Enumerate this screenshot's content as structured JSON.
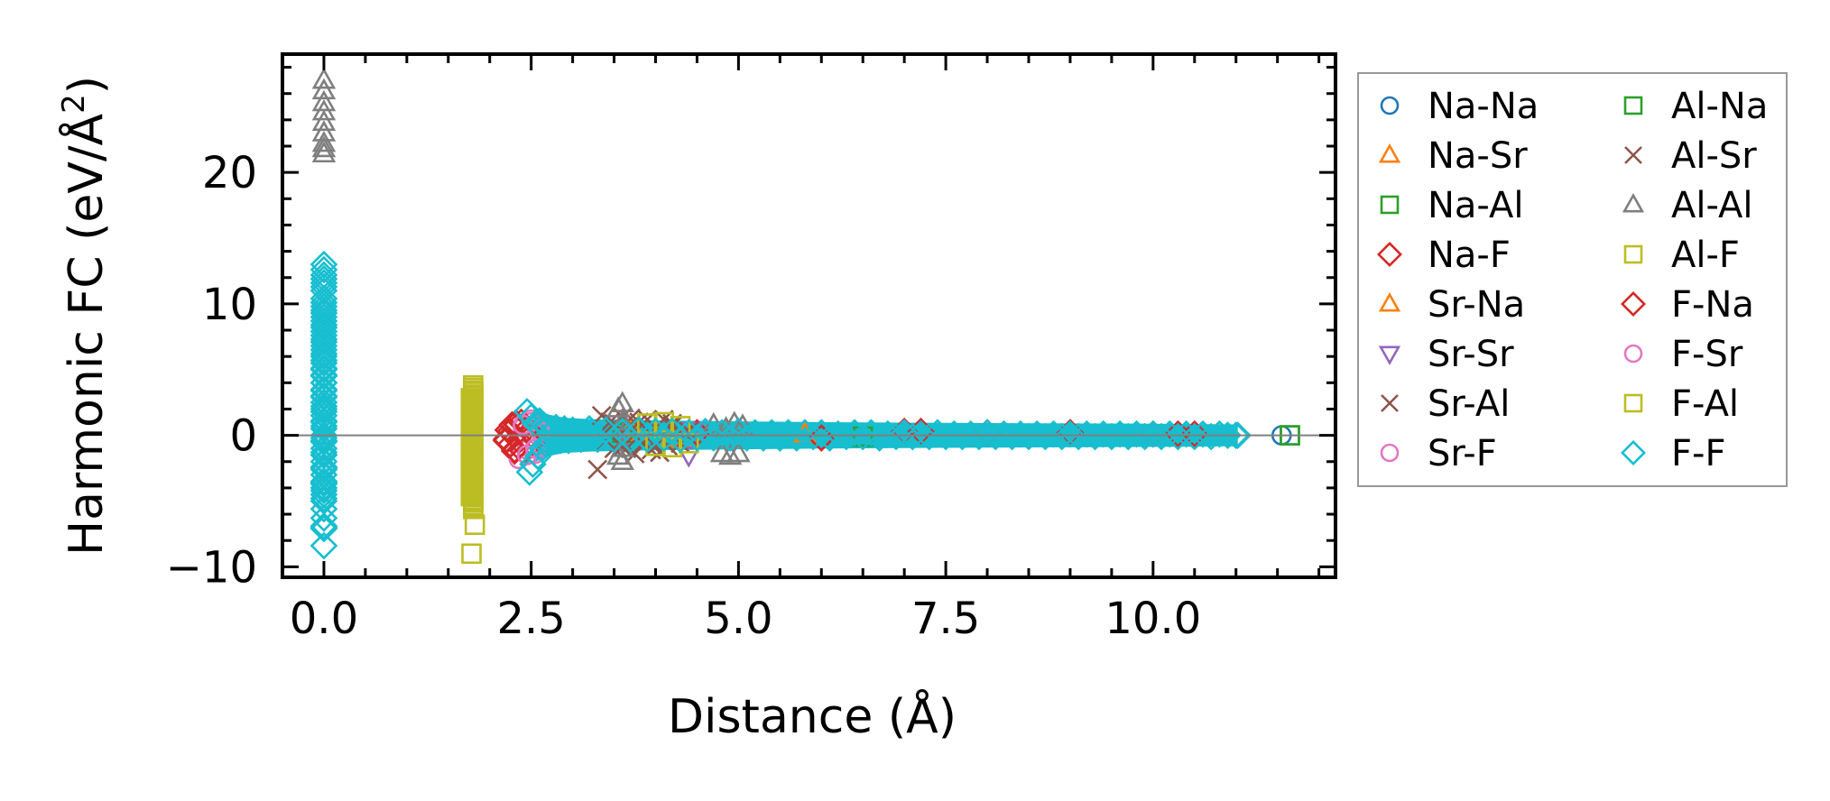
{
  "chart_data": {
    "type": "scatter",
    "title": "",
    "xlabel": "Distance (Å)",
    "ylabel": "Harmonic FC (eV/Å²)",
    "ylabel_parts": {
      "main": "Harmonic FC (eV/Å",
      "sup": "2",
      "close": ")"
    },
    "xlim": [
      -0.5,
      12.2
    ],
    "ylim": [
      -10.8,
      29.0
    ],
    "xticks": [
      0.0,
      2.5,
      5.0,
      7.5,
      10.0
    ],
    "xtick_labels": [
      "0.0",
      "2.5",
      "5.0",
      "7.5",
      "10.0"
    ],
    "yticks": [
      -10,
      0,
      10,
      20
    ],
    "ytick_labels": [
      "−10",
      "0",
      "10",
      "20"
    ],
    "x_minor_step": 0.5,
    "y_minor_step": 2,
    "zero_line": true,
    "grid": false,
    "legend_position": "outside-right",
    "legend_columns": 2,
    "series": [
      {
        "name": "Na-Na",
        "marker": "circle",
        "color": "#1f77b4",
        "x": [
          11.55
        ],
        "y": [
          0.0
        ]
      },
      {
        "name": "Na-Sr",
        "marker": "triangle-up",
        "color": "#ff7f0e",
        "x": [
          3.7,
          4.2,
          5.8
        ],
        "y": [
          0.3,
          -0.2,
          0.1
        ]
      },
      {
        "name": "Na-Al",
        "marker": "square",
        "color": "#2ca02c",
        "x": [
          3.6,
          6.5,
          11.65
        ],
        "y": [
          0.2,
          -0.1,
          0.0
        ]
      },
      {
        "name": "Na-F",
        "marker": "diamond",
        "color": "#d62728",
        "x": [
          2.2,
          2.25,
          2.3,
          4.5,
          7.2,
          9.0,
          10.3
        ],
        "y": [
          -0.4,
          0.3,
          -1.2,
          0.2,
          0.3,
          0.2,
          0.1
        ]
      },
      {
        "name": "Sr-Na",
        "marker": "triangle-up",
        "color": "#ff7f0e",
        "x": [
          3.75,
          4.3
        ],
        "y": [
          0.2,
          -0.3
        ]
      },
      {
        "name": "Sr-Sr",
        "marker": "triangle-down",
        "color": "#9467bd",
        "x": [
          4.4,
          4.45
        ],
        "y": [
          -1.5,
          0.4
        ]
      },
      {
        "name": "Sr-Al",
        "marker": "x",
        "color": "#8c564b",
        "x": [
          3.3,
          3.35,
          3.4,
          3.45,
          3.5,
          3.55,
          3.6,
          3.65,
          3.7,
          3.75,
          3.8,
          3.85,
          3.9,
          3.95,
          4.0,
          4.05,
          4.1,
          4.15,
          4.2,
          4.3,
          4.4
        ],
        "y": [
          -2.6,
          1.5,
          -0.5,
          1.0,
          -1.0,
          0.4,
          1.4,
          -1.0,
          0.8,
          -1.4,
          1.0,
          -0.6,
          1.2,
          -1.1,
          0.6,
          -1.3,
          1.2,
          -0.8,
          0.7,
          -0.6,
          0.3
        ]
      },
      {
        "name": "Sr-F",
        "marker": "circle",
        "color": "#e377c2",
        "x": [
          2.35,
          2.4,
          2.45,
          2.5,
          2.55,
          2.6
        ],
        "y": [
          -1.8,
          0.6,
          -1.1,
          1.0,
          -1.4,
          0.5
        ]
      },
      {
        "name": "Al-Na",
        "marker": "square",
        "color": "#2ca02c",
        "x": [
          11.65
        ],
        "y": [
          0.0
        ]
      },
      {
        "name": "Al-Sr",
        "marker": "x",
        "color": "#8c564b",
        "x": [
          3.5,
          3.6,
          3.7,
          4.0,
          4.2
        ],
        "y": [
          0.9,
          -0.9,
          1.3,
          -0.8,
          0.9
        ]
      },
      {
        "name": "Al-Al",
        "marker": "triangle-up",
        "color": "#7f7f7f",
        "x": [
          0.0,
          0.0,
          0.0,
          0.0,
          0.0,
          0.0,
          0.0,
          0.0,
          0.0,
          3.55,
          3.55,
          3.6,
          3.6,
          3.6,
          3.6,
          3.65,
          4.7,
          4.8,
          4.85,
          4.9,
          4.95,
          5.0,
          5.05
        ],
        "y": [
          27.0,
          26.2,
          25.3,
          24.6,
          23.8,
          23.0,
          22.2,
          21.8,
          21.4,
          2.0,
          -1.6,
          2.4,
          -2.0,
          1.0,
          -1.0,
          0.5,
          0.8,
          -1.4,
          0.5,
          -1.6,
          0.9,
          -1.4,
          0.7
        ]
      },
      {
        "name": "Al-F",
        "marker": "square",
        "color": "#bcbd22",
        "x": [
          1.78,
          1.8,
          1.8,
          1.8,
          1.8,
          1.8,
          1.8,
          1.8,
          1.8,
          1.8,
          1.8,
          1.8,
          1.8,
          1.8,
          1.8,
          1.8,
          1.8,
          1.8,
          1.8,
          1.8,
          1.8,
          1.8,
          1.8,
          1.8,
          1.8,
          1.8,
          1.82,
          3.9,
          4.0,
          4.1,
          4.2,
          4.3,
          4.4
        ],
        "y": [
          -9.0,
          3.8,
          3.3,
          2.8,
          2.3,
          1.8,
          1.3,
          0.8,
          0.3,
          -0.2,
          -0.7,
          -1.2,
          -1.7,
          -2.2,
          -2.7,
          -3.2,
          -3.7,
          -4.2,
          -4.7,
          -5.1,
          -5.5,
          3.0,
          1.0,
          -1.0,
          -3.0,
          -5.0,
          -6.8,
          0.9,
          -0.8,
          1.0,
          -0.9,
          0.7,
          -0.6
        ]
      },
      {
        "name": "F-Na",
        "marker": "diamond",
        "color": "#d62728",
        "x": [
          2.2,
          2.22,
          2.25,
          2.27,
          2.3,
          2.32,
          2.35,
          2.38,
          2.4,
          2.45,
          2.5,
          5.0,
          6.0,
          7.0,
          8.0,
          9.0,
          10.0,
          10.5
        ],
        "y": [
          -0.3,
          0.4,
          -0.7,
          0.8,
          -1.1,
          0.9,
          -0.4,
          1.0,
          -1.2,
          0.5,
          -0.6,
          0.3,
          -0.2,
          0.3,
          0.2,
          0.2,
          0.1,
          0.1
        ]
      },
      {
        "name": "F-Sr",
        "marker": "circle",
        "color": "#e377c2",
        "x": [
          2.4,
          2.45,
          2.5,
          2.55,
          2.6
        ],
        "y": [
          0.8,
          -1.5,
          1.2,
          -1.0,
          0.3
        ]
      },
      {
        "name": "F-Al",
        "marker": "square",
        "color": "#bcbd22",
        "x": [
          1.8,
          1.8,
          1.8,
          1.8,
          1.8,
          1.8,
          1.8,
          1.8,
          1.8,
          1.8,
          1.8,
          1.8,
          1.8,
          1.8,
          1.8,
          1.8,
          1.8,
          1.8,
          1.8,
          1.8,
          1.8,
          1.8,
          1.8,
          1.8,
          1.8
        ],
        "y": [
          3.6,
          3.1,
          2.6,
          2.1,
          1.6,
          1.1,
          0.6,
          0.1,
          -0.4,
          -0.9,
          -1.4,
          -1.9,
          -2.4,
          -2.9,
          -3.4,
          -3.9,
          -4.4,
          -4.9,
          -5.3,
          3.4,
          1.5,
          -0.5,
          -2.5,
          -4.5,
          -5.6
        ]
      },
      {
        "name": "F-F",
        "marker": "diamond",
        "color": "#17becf",
        "x": [
          0.0,
          0.0,
          0.0,
          0.0,
          0.0,
          0.0,
          0.0,
          0.0,
          0.0,
          0.0,
          0.0,
          0.0,
          0.0,
          0.0,
          0.0,
          0.0,
          0.0,
          0.0,
          0.0,
          0.0,
          0.0,
          0.0,
          0.0,
          0.0,
          0.0,
          0.0,
          0.0,
          0.0,
          0.0,
          0.0,
          0.0,
          0.0,
          0.0,
          0.0,
          0.0,
          0.0,
          0.0,
          0.0,
          0.0,
          0.0,
          0.0,
          0.0,
          0.0,
          0.0,
          0.0,
          0.0,
          0.0,
          0.0,
          0.0,
          0.0,
          0.0,
          0.0,
          0.0,
          0.0,
          0.0,
          0.0,
          0.0,
          0.0,
          0.0,
          0.0,
          0.0,
          0.0,
          0.0,
          0.0,
          0.0,
          0.0,
          0.0,
          0.0,
          0.0,
          0.0,
          0.0,
          0.0,
          2.45,
          2.48,
          2.5,
          2.52,
          2.55,
          2.58,
          2.6,
          2.63,
          2.65,
          2.68,
          2.7,
          2.75,
          2.8,
          2.85,
          2.9,
          2.95,
          3.0,
          3.1,
          3.2,
          3.3,
          3.4,
          3.5,
          3.6,
          3.7,
          3.8,
          3.9,
          4.0,
          4.1,
          4.2,
          4.3,
          4.4,
          4.5,
          4.6,
          4.7,
          4.8,
          4.9,
          5.0,
          5.1,
          5.2,
          5.3,
          5.4,
          5.5,
          5.6,
          5.7,
          5.8,
          5.9,
          6.0,
          6.1,
          6.2,
          6.3,
          6.4,
          6.5,
          6.6,
          6.7,
          6.8,
          6.9,
          7.0,
          7.1,
          7.2,
          7.3,
          7.4,
          7.5,
          7.6,
          7.7,
          7.8,
          7.9,
          8.0,
          8.1,
          8.2,
          8.3,
          8.4,
          8.5,
          8.6,
          8.7,
          8.8,
          8.9,
          9.0,
          9.1,
          9.2,
          9.3,
          9.4,
          9.5,
          9.6,
          9.7,
          9.8,
          9.9,
          10.0,
          10.1,
          10.2,
          10.3,
          10.4,
          10.5,
          10.6,
          10.7,
          10.8,
          10.9,
          11.0,
          11.02
        ],
        "y": [
          13.0,
          12.2,
          11.6,
          11.0,
          10.4,
          9.8,
          9.3,
          8.7,
          8.2,
          7.6,
          7.1,
          6.5,
          6.0,
          5.5,
          5.0,
          4.5,
          4.0,
          3.5,
          3.0,
          2.5,
          2.0,
          1.5,
          1.0,
          0.5,
          0.0,
          -0.5,
          -1.0,
          -1.5,
          -2.0,
          -2.5,
          -3.0,
          -3.5,
          -4.0,
          -4.5,
          -5.0,
          -5.6,
          -6.3,
          -7.1,
          -8.4,
          12.6,
          11.3,
          10.1,
          9.0,
          7.9,
          6.8,
          5.7,
          4.6,
          3.4,
          2.2,
          1.1,
          -0.2,
          -1.3,
          -2.4,
          -3.6,
          -4.2,
          -6.9,
          9.5,
          8.4,
          7.3,
          6.2,
          5.1,
          4.0,
          2.9,
          1.8,
          0.7,
          -0.4,
          -1.5,
          -2.6,
          -3.7,
          -4.8,
          11.9,
          -7.0,
          1.8,
          -2.8,
          1.4,
          -2.2,
          0.9,
          -1.6,
          1.1,
          -1.0,
          0.8,
          -0.7,
          0.6,
          -0.5,
          0.6,
          -0.4,
          0.5,
          -0.4,
          0.4,
          -0.3,
          0.5,
          -0.3,
          0.4,
          -0.3,
          0.3,
          -0.3,
          0.4,
          -0.3,
          0.3,
          -0.2,
          0.3,
          -0.3,
          0.2,
          -0.2,
          0.3,
          -0.2,
          0.2,
          -0.2,
          0.3,
          -0.2,
          0.2,
          -0.2,
          0.2,
          -0.2,
          0.2,
          -0.2,
          0.2,
          -0.1,
          0.2,
          -0.2,
          0.1,
          -0.1,
          0.2,
          -0.1,
          0.2,
          -0.2,
          0.1,
          -0.1,
          0.2,
          -0.1,
          0.1,
          -0.1,
          0.2,
          -0.1,
          0.1,
          -0.1,
          0.1,
          -0.1,
          0.2,
          -0.1,
          0.1,
          -0.1,
          0.1,
          -0.1,
          0.1,
          -0.1,
          0.1,
          -0.1,
          0.1,
          -0.1,
          0.1,
          -0.1,
          0.1,
          -0.1,
          0.1,
          -0.1,
          0.1,
          -0.1,
          0.1,
          -0.1,
          0.1,
          -0.1,
          0.1,
          -0.1,
          0.1,
          -0.1,
          0.1,
          0.0,
          0.0,
          0.0
        ]
      }
    ]
  }
}
